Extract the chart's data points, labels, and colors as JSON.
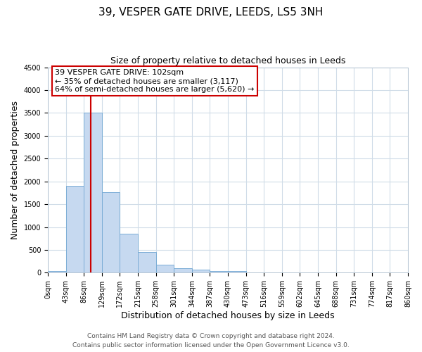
{
  "title": "39, VESPER GATE DRIVE, LEEDS, LS5 3NH",
  "subtitle": "Size of property relative to detached houses in Leeds",
  "xlabel": "Distribution of detached houses by size in Leeds",
  "ylabel": "Number of detached properties",
  "bin_edges": [
    0,
    43,
    86,
    129,
    172,
    215,
    258,
    301,
    344,
    387,
    430,
    473,
    516,
    559,
    602,
    645,
    688,
    731,
    774,
    817,
    860
  ],
  "bar_heights": [
    40,
    1900,
    3500,
    1760,
    850,
    450,
    170,
    100,
    60,
    40,
    30,
    0,
    0,
    0,
    0,
    0,
    0,
    0,
    0,
    0
  ],
  "bar_color": "#c6d9f0",
  "bar_edge_color": "#7badd6",
  "vline_x": 102,
  "vline_color": "#cc0000",
  "ylim": [
    0,
    4500
  ],
  "yticks": [
    0,
    500,
    1000,
    1500,
    2000,
    2500,
    3000,
    3500,
    4000,
    4500
  ],
  "xtick_labels": [
    "0sqm",
    "43sqm",
    "86sqm",
    "129sqm",
    "172sqm",
    "215sqm",
    "258sqm",
    "301sqm",
    "344sqm",
    "387sqm",
    "430sqm",
    "473sqm",
    "516sqm",
    "559sqm",
    "602sqm",
    "645sqm",
    "688sqm",
    "731sqm",
    "774sqm",
    "817sqm",
    "860sqm"
  ],
  "annotation_title": "39 VESPER GATE DRIVE: 102sqm",
  "annotation_line1": "← 35% of detached houses are smaller (3,117)",
  "annotation_line2": "64% of semi-detached houses are larger (5,620) →",
  "annotation_box_facecolor": "#ffffff",
  "annotation_box_edgecolor": "#cc0000",
  "background_color": "#ffffff",
  "plot_bg_color": "#ffffff",
  "grid_color": "#d0dce8",
  "title_fontsize": 11,
  "subtitle_fontsize": 9,
  "axis_label_fontsize": 9,
  "tick_fontsize": 7,
  "annotation_fontsize": 8,
  "footer_fontsize": 6.5,
  "footer1": "Contains HM Land Registry data © Crown copyright and database right 2024.",
  "footer2": "Contains public sector information licensed under the Open Government Licence v3.0."
}
